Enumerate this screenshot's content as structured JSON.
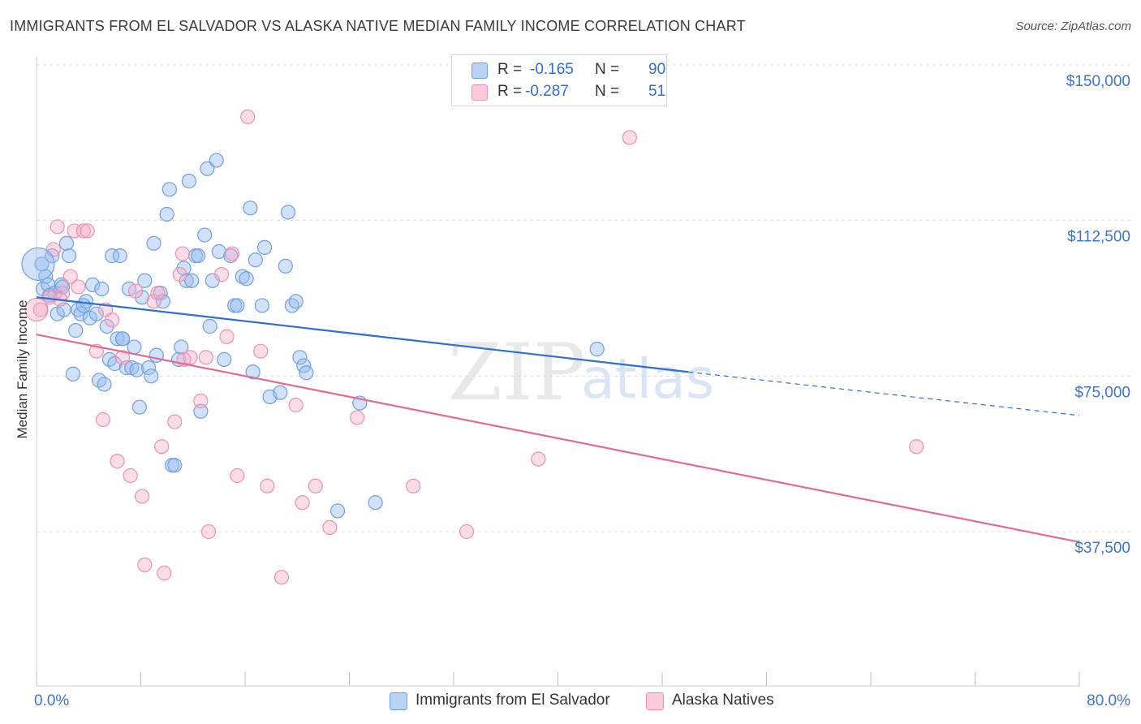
{
  "title": "IMMIGRANTS FROM EL SALVADOR VS ALASKA NATIVE MEDIAN FAMILY INCOME CORRELATION CHART",
  "source": "Source: ZipAtlas.com",
  "watermark": {
    "zip": "ZIP",
    "atlas": "atlas"
  },
  "legend": {
    "rows": [
      {
        "r_label": "R =",
        "r_value": "-0.165",
        "n_label": "N =",
        "n_value": "90"
      },
      {
        "r_label": "R =",
        "r_value": "-0.287",
        "n_label": "N =",
        "n_value": "51"
      }
    ]
  },
  "bottom_legend": [
    "Immigrants from El Salvador",
    "Alaska Natives"
  ],
  "chart_data": {
    "type": "scatter",
    "title": "IMMIGRANTS FROM EL SALVADOR VS ALASKA NATIVE MEDIAN FAMILY INCOME CORRELATION CHART",
    "xlabel": "",
    "ylabel": "Median Family Income",
    "xlim": [
      0,
      80
    ],
    "ylim": [
      0,
      155000
    ],
    "x_tick_labels": [
      "0.0%",
      "80.0%"
    ],
    "y_ticks": [
      37500,
      75000,
      112500,
      150000
    ],
    "y_tick_labels": [
      "$37,500",
      "$75,000",
      "$112,500",
      "$150,000"
    ],
    "grid": true,
    "colors": {
      "blue": "#6f9fe0",
      "blue_line": "#2f6fd0",
      "pink": "#ee8fb0",
      "pink_line": "#e46a93",
      "axis_text": "#3c74d0"
    },
    "series": [
      {
        "name": "Immigrants from El Salvador",
        "color": "blue",
        "trend": {
          "x0": 0,
          "y0": 94000,
          "x1": 50,
          "y1": 76000,
          "dash_x1": 80,
          "dash_y1": 65500
        },
        "points": [
          [
            0.5,
            96000
          ],
          [
            0.7,
            99000
          ],
          [
            0.9,
            97000
          ],
          [
            1.2,
            104000
          ],
          [
            1.4,
            95000
          ],
          [
            1.6,
            90000
          ],
          [
            1.9,
            97000
          ],
          [
            2.1,
            91000
          ],
          [
            2.3,
            107000
          ],
          [
            2.5,
            104000
          ],
          [
            2.8,
            75500
          ],
          [
            3.0,
            86000
          ],
          [
            3.2,
            91000
          ],
          [
            3.4,
            90000
          ],
          [
            3.8,
            93000
          ],
          [
            4.1,
            89000
          ],
          [
            4.3,
            97000
          ],
          [
            4.6,
            90000
          ],
          [
            4.8,
            74000
          ],
          [
            5.0,
            96000
          ],
          [
            5.2,
            73000
          ],
          [
            5.4,
            87000
          ],
          [
            5.6,
            79000
          ],
          [
            5.8,
            104000
          ],
          [
            6.0,
            78000
          ],
          [
            6.2,
            84000
          ],
          [
            6.4,
            104000
          ],
          [
            6.6,
            84000
          ],
          [
            6.9,
            77000
          ],
          [
            7.1,
            96000
          ],
          [
            7.3,
            77000
          ],
          [
            7.5,
            82000
          ],
          [
            7.7,
            76500
          ],
          [
            7.9,
            67500
          ],
          [
            8.1,
            94000
          ],
          [
            8.3,
            98000
          ],
          [
            8.6,
            77000
          ],
          [
            8.8,
            75000
          ],
          [
            9.0,
            107000
          ],
          [
            9.2,
            80000
          ],
          [
            9.5,
            95000
          ],
          [
            9.7,
            93000
          ],
          [
            10.0,
            114000
          ],
          [
            10.2,
            120000
          ],
          [
            10.4,
            53500
          ],
          [
            10.6,
            53500
          ],
          [
            10.9,
            79000
          ],
          [
            11.1,
            82000
          ],
          [
            11.3,
            101000
          ],
          [
            11.5,
            98000
          ],
          [
            11.7,
            122000
          ],
          [
            11.9,
            98000
          ],
          [
            12.2,
            104000
          ],
          [
            12.4,
            104000
          ],
          [
            12.6,
            66500
          ],
          [
            12.9,
            109000
          ],
          [
            13.1,
            125000
          ],
          [
            13.3,
            87000
          ],
          [
            13.5,
            98000
          ],
          [
            13.8,
            127000
          ],
          [
            14.0,
            105000
          ],
          [
            14.4,
            79000
          ],
          [
            14.9,
            104000
          ],
          [
            15.2,
            92000
          ],
          [
            15.4,
            92000
          ],
          [
            15.8,
            99000
          ],
          [
            16.1,
            98500
          ],
          [
            16.4,
            115500
          ],
          [
            16.6,
            76000
          ],
          [
            16.8,
            103000
          ],
          [
            17.3,
            92000
          ],
          [
            17.5,
            106000
          ],
          [
            17.9,
            70000
          ],
          [
            18.7,
            71000
          ],
          [
            19.1,
            101500
          ],
          [
            19.3,
            114500
          ],
          [
            19.6,
            92000
          ],
          [
            19.9,
            93000
          ],
          [
            20.2,
            79500
          ],
          [
            20.5,
            77500
          ],
          [
            20.7,
            75800
          ],
          [
            23.1,
            42500
          ],
          [
            24.8,
            68500
          ],
          [
            26.0,
            44500
          ],
          [
            43.0,
            81500
          ],
          [
            0.4,
            102000
          ],
          [
            1.0,
            94500
          ],
          [
            2.0,
            96500
          ],
          [
            3.6,
            92000
          ],
          [
            6.6,
            84000
          ]
        ]
      },
      {
        "name": "Alaska Natives",
        "color": "pink",
        "trend": {
          "x0": 0,
          "y0": 85000,
          "x1": 80,
          "y1": 35000
        },
        "points": [
          [
            0.3,
            91000
          ],
          [
            1.0,
            94000
          ],
          [
            1.3,
            105500
          ],
          [
            1.6,
            111000
          ],
          [
            2.0,
            95000
          ],
          [
            2.6,
            99000
          ],
          [
            2.9,
            110000
          ],
          [
            3.2,
            96500
          ],
          [
            3.6,
            110000
          ],
          [
            3.9,
            110000
          ],
          [
            4.6,
            81000
          ],
          [
            5.1,
            64500
          ],
          [
            5.3,
            91000
          ],
          [
            5.8,
            88500
          ],
          [
            6.2,
            54500
          ],
          [
            6.6,
            79500
          ],
          [
            7.2,
            51000
          ],
          [
            7.6,
            95500
          ],
          [
            8.1,
            46000
          ],
          [
            8.3,
            29500
          ],
          [
            9.0,
            93000
          ],
          [
            9.3,
            95000
          ],
          [
            9.6,
            58000
          ],
          [
            9.8,
            27500
          ],
          [
            10.6,
            64000
          ],
          [
            11.0,
            99500
          ],
          [
            11.2,
            104500
          ],
          [
            11.8,
            79500
          ],
          [
            12.6,
            69000
          ],
          [
            13.0,
            79500
          ],
          [
            13.2,
            37500
          ],
          [
            14.2,
            99500
          ],
          [
            14.6,
            84500
          ],
          [
            15.0,
            104500
          ],
          [
            15.4,
            51000
          ],
          [
            16.2,
            137500
          ],
          [
            17.2,
            81000
          ],
          [
            17.7,
            48500
          ],
          [
            18.8,
            26500
          ],
          [
            19.9,
            68000
          ],
          [
            20.4,
            44500
          ],
          [
            21.4,
            48500
          ],
          [
            22.5,
            38500
          ],
          [
            24.6,
            65000
          ],
          [
            28.9,
            48500
          ],
          [
            33.0,
            37500
          ],
          [
            38.5,
            55000
          ],
          [
            45.5,
            132500
          ],
          [
            67.5,
            58000
          ],
          [
            1.8,
            93500
          ],
          [
            11.3,
            79000
          ]
        ]
      }
    ]
  }
}
